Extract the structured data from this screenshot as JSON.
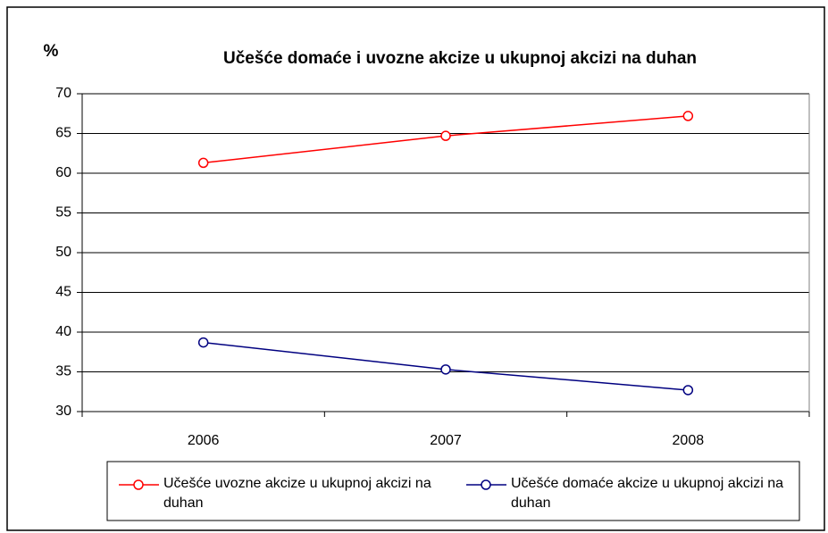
{
  "chart_data": {
    "type": "line",
    "title": "Učešće domaće i uvozne akcize u ukupnoj akcizi na duhan",
    "y_label": "%",
    "categories": [
      "2006",
      "2007",
      "2008"
    ],
    "series": [
      {
        "name": "Učešće uvozne akcize u ukupnoj akcizi na duhan",
        "color": "#ff0000",
        "values": [
          61.3,
          64.7,
          67.2
        ]
      },
      {
        "name": "Učešće domaće akcize u ukupnoj akcizi na duhan",
        "color": "#000080",
        "values": [
          38.7,
          35.3,
          32.7
        ]
      }
    ],
    "ylim": [
      30,
      70
    ],
    "yticks": [
      30,
      35,
      40,
      45,
      50,
      55,
      60,
      65,
      70
    ],
    "grid": true,
    "legend": "bottom"
  }
}
